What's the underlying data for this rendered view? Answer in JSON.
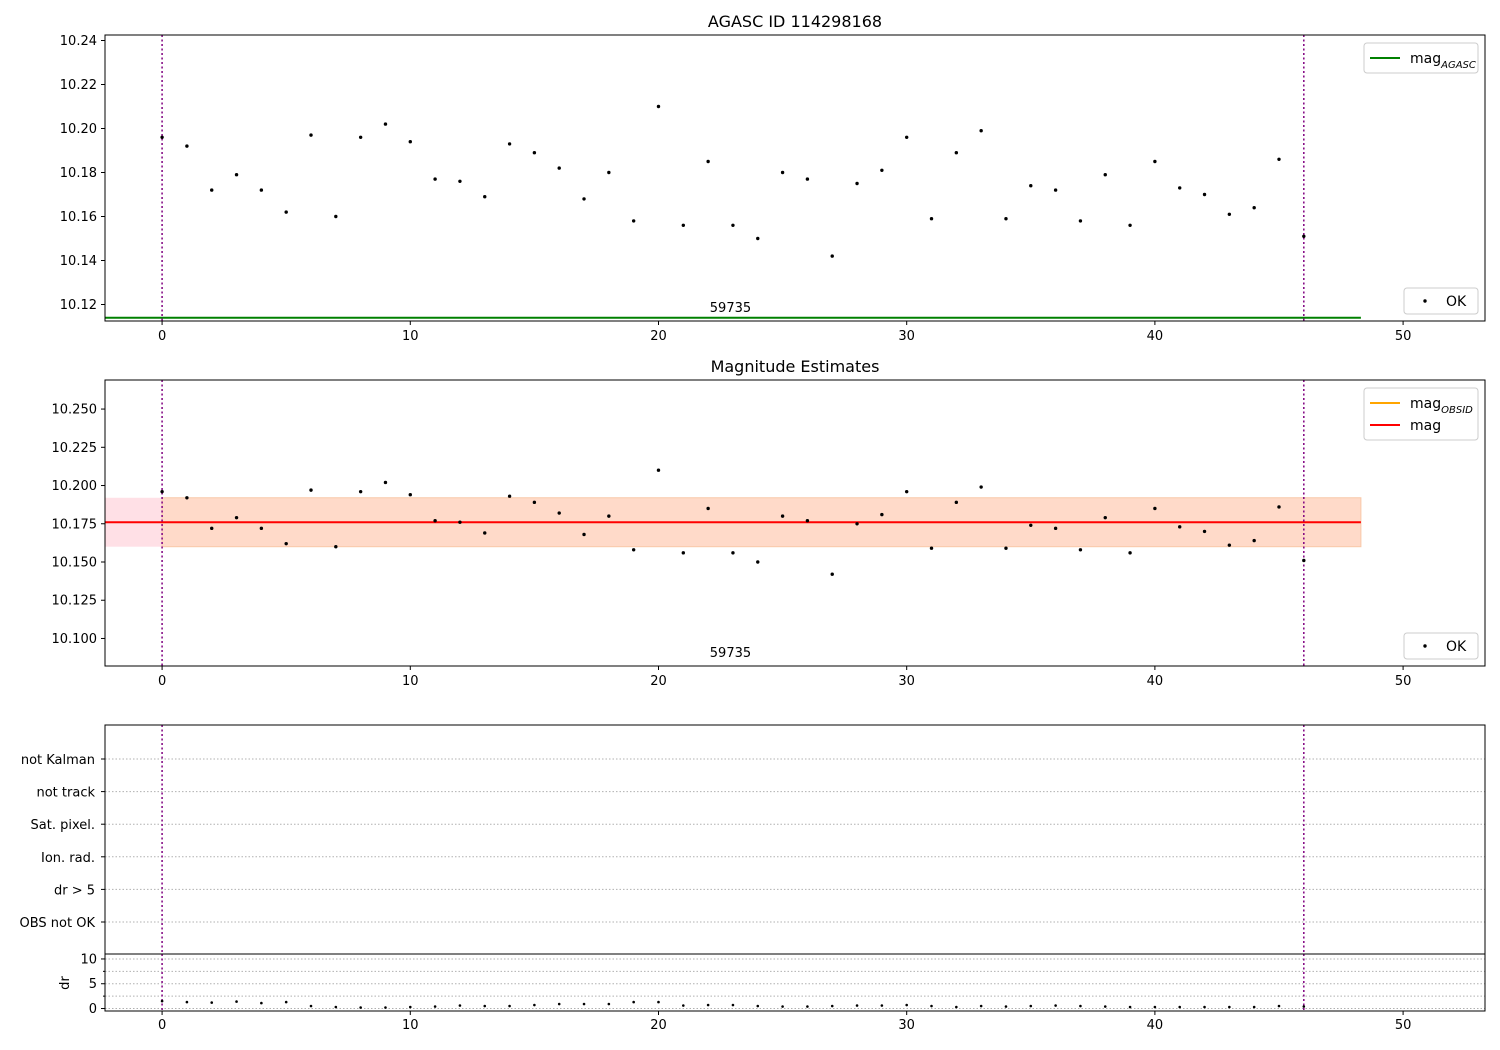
{
  "chart_data": [
    {
      "type": "scatter",
      "title": "AGASC ID 114298168",
      "xlim": [
        -2.3,
        53.3
      ],
      "ylim": [
        10.1125,
        10.2425
      ],
      "x_ticks": [
        0,
        10,
        20,
        30,
        40,
        50
      ],
      "y_ticks": [
        10.12,
        10.14,
        10.16,
        10.18,
        10.2,
        10.22,
        10.24
      ],
      "y_tick_labels": [
        "10.12",
        "10.14",
        "10.16",
        "10.18",
        "10.20",
        "10.22",
        "10.24"
      ],
      "annotation": {
        "text": "59735",
        "x": 22.9
      },
      "mag_agasc": {
        "value": 10.114,
        "x_range": [
          -2.3,
          48.3
        ],
        "color": "#008000"
      },
      "vlines": [
        0,
        46
      ],
      "legend_lines": [
        {
          "label": "mag",
          "sub": "AGASC",
          "color": "#008000"
        }
      ],
      "legend_points": [
        {
          "label": "OK"
        }
      ],
      "series": [
        {
          "name": "OK",
          "x": [
            0,
            1,
            2,
            3,
            4,
            5,
            6,
            7,
            8,
            9,
            10,
            11,
            12,
            13,
            14,
            15,
            16,
            17,
            18,
            19,
            20,
            21,
            22,
            23,
            24,
            25,
            26,
            27,
            28,
            29,
            30,
            31,
            32,
            33,
            34,
            35,
            36,
            37,
            38,
            39,
            40,
            41,
            42,
            43,
            44,
            45,
            46
          ],
          "y": [
            10.196,
            10.192,
            10.172,
            10.179,
            10.172,
            10.162,
            10.197,
            10.16,
            10.196,
            10.202,
            10.194,
            10.177,
            10.176,
            10.169,
            10.193,
            10.189,
            10.182,
            10.168,
            10.18,
            10.158,
            10.21,
            10.156,
            10.185,
            10.156,
            10.15,
            10.18,
            10.177,
            10.142,
            10.175,
            10.181,
            10.196,
            10.159,
            10.189,
            10.199,
            10.159,
            10.174,
            10.172,
            10.158,
            10.179,
            10.156,
            10.185,
            10.173,
            10.17,
            10.161,
            10.164,
            10.186,
            10.151
          ]
        }
      ]
    },
    {
      "type": "scatter",
      "title": "Magnitude Estimates",
      "xlim": [
        -2.3,
        53.3
      ],
      "ylim": [
        10.082,
        10.269
      ],
      "x_ticks": [
        0,
        10,
        20,
        30,
        40,
        50
      ],
      "y_ticks": [
        10.1,
        10.125,
        10.15,
        10.175,
        10.2,
        10.225,
        10.25
      ],
      "y_tick_labels": [
        "10.100",
        "10.125",
        "10.150",
        "10.175",
        "10.200",
        "10.225",
        "10.250"
      ],
      "annotation": {
        "text": "59735",
        "x": 22.9
      },
      "mag": {
        "value": 10.176,
        "band": [
          10.16,
          10.192
        ],
        "x_range": [
          -2.3,
          48.3
        ],
        "color": "#ff0000"
      },
      "vlines": [
        0,
        46
      ],
      "legend_lines": [
        {
          "label": "mag",
          "sub": "OBSID",
          "color": "#ffa500"
        },
        {
          "label": "mag",
          "sub": "",
          "color": "#ff0000"
        }
      ],
      "legend_points": [
        {
          "label": "OK"
        }
      ],
      "series": [
        {
          "name": "OK",
          "x": [
            0,
            1,
            2,
            3,
            4,
            5,
            6,
            7,
            8,
            9,
            10,
            11,
            12,
            13,
            14,
            15,
            16,
            17,
            18,
            19,
            20,
            21,
            22,
            23,
            24,
            25,
            26,
            27,
            28,
            29,
            30,
            31,
            32,
            33,
            34,
            35,
            36,
            37,
            38,
            39,
            40,
            41,
            42,
            43,
            44,
            45,
            46
          ],
          "y": [
            10.196,
            10.192,
            10.172,
            10.179,
            10.172,
            10.162,
            10.197,
            10.16,
            10.196,
            10.202,
            10.194,
            10.177,
            10.176,
            10.169,
            10.193,
            10.189,
            10.182,
            10.168,
            10.18,
            10.158,
            10.21,
            10.156,
            10.185,
            10.156,
            10.15,
            10.18,
            10.177,
            10.142,
            10.175,
            10.181,
            10.196,
            10.159,
            10.189,
            10.199,
            10.159,
            10.174,
            10.172,
            10.158,
            10.179,
            10.156,
            10.185,
            10.173,
            10.17,
            10.161,
            10.164,
            10.186,
            10.151
          ]
        }
      ]
    },
    {
      "type": "scatter",
      "title": "",
      "flag_labels": [
        "not Kalman",
        "not track",
        "Sat. pixel.",
        "Ion. rad.",
        "dr > 5",
        "OBS not OK"
      ],
      "xlim": [
        -2.3,
        53.3
      ],
      "x_ticks": [
        0,
        10,
        20,
        30,
        40,
        50
      ],
      "vlines": [
        0,
        46
      ],
      "dr_panel": {
        "ylabel": "dr",
        "ylim": [
          -0.5,
          11
        ],
        "y_ticks": [
          0,
          5,
          10
        ],
        "y_minor_ticks": [
          2.5,
          7.5
        ],
        "x": [
          0,
          1,
          2,
          3,
          4,
          5,
          6,
          7,
          8,
          9,
          10,
          11,
          12,
          13,
          14,
          15,
          16,
          17,
          18,
          19,
          20,
          21,
          22,
          23,
          24,
          25,
          26,
          27,
          28,
          29,
          30,
          31,
          32,
          33,
          34,
          35,
          36,
          37,
          38,
          39,
          40,
          41,
          42,
          43,
          44,
          45,
          46
        ],
        "y": [
          1.5,
          1.3,
          1.2,
          1.4,
          1.1,
          1.3,
          0.5,
          0.3,
          0.2,
          0.2,
          0.3,
          0.4,
          0.6,
          0.5,
          0.5,
          0.7,
          0.9,
          0.9,
          0.9,
          1.3,
          1.3,
          0.6,
          0.7,
          0.7,
          0.5,
          0.4,
          0.4,
          0.5,
          0.6,
          0.6,
          0.7,
          0.5,
          0.3,
          0.5,
          0.4,
          0.5,
          0.6,
          0.5,
          0.4,
          0.3,
          0.3,
          0.3,
          0.3,
          0.3,
          0.3,
          0.5,
          0.4
        ]
      }
    }
  ]
}
